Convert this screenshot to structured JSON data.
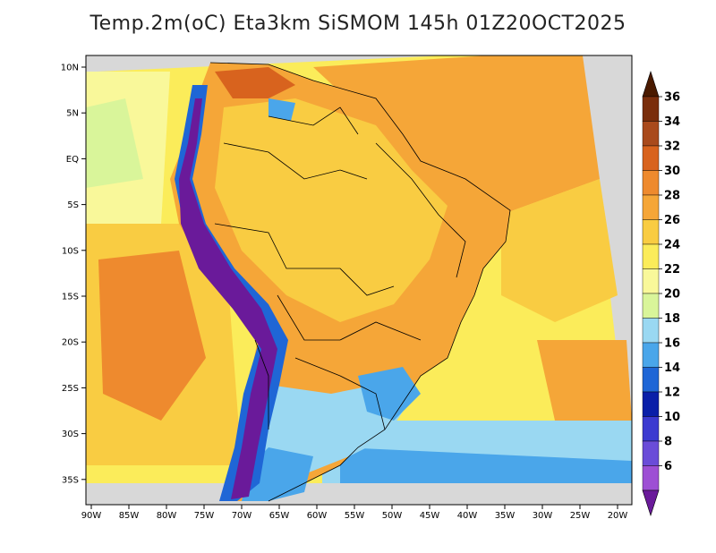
{
  "title": "Temp.2m(oC) Eta3km SiSMOM 145h 01Z20OCT2025",
  "lat_ticks": [
    "10N",
    "5N",
    "EQ",
    "5S",
    "10S",
    "15S",
    "20S",
    "25S",
    "30S",
    "35S"
  ],
  "lon_ticks": [
    "90W",
    "85W",
    "80W",
    "75W",
    "70W",
    "65W",
    "60W",
    "55W",
    "50W",
    "45W",
    "40W",
    "35W",
    "30W",
    "25W",
    "20W"
  ],
  "colorbar": {
    "labels": [
      "36",
      "34",
      "32",
      "30",
      "28",
      "26",
      "24",
      "22",
      "20",
      "18",
      "16",
      "14",
      "12",
      "10",
      "8",
      "6"
    ],
    "colors": [
      "#4a1a00",
      "#7a2e0c",
      "#a94a1c",
      "#d8631e",
      "#ee8a2e",
      "#f5a638",
      "#f9cc42",
      "#fbec5a",
      "#f9f89a",
      "#d9f59a",
      "#9ad8f2",
      "#4aa6ea",
      "#1f66d6",
      "#0a1fa8",
      "#3c3ad0",
      "#6a4cd8",
      "#9d4fd4",
      "#6a1a9a"
    ]
  }
}
